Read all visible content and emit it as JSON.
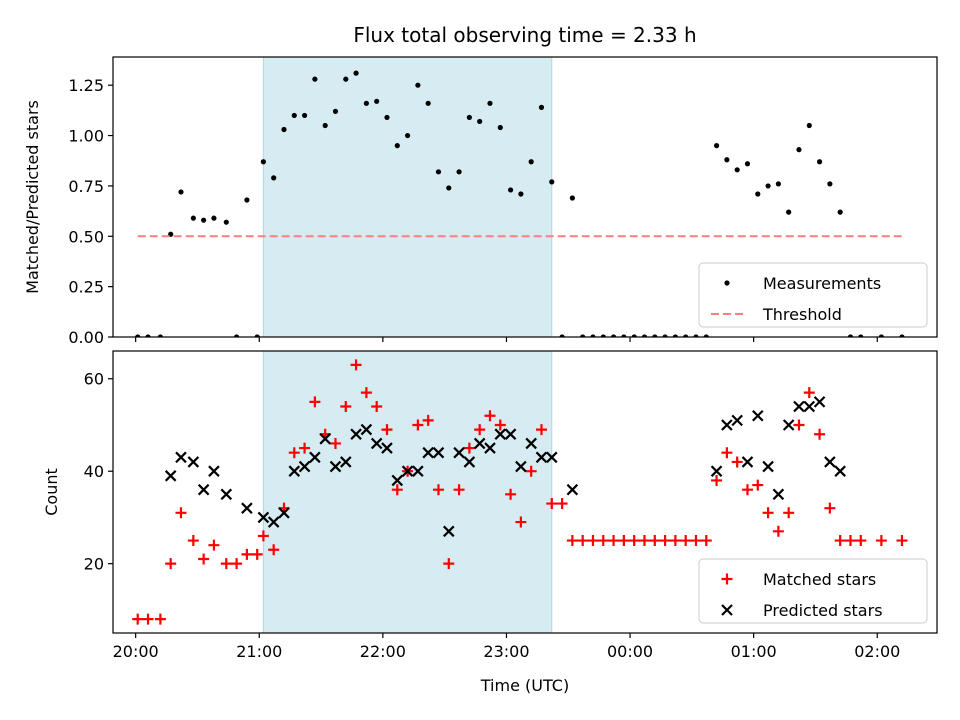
{
  "chart_data": [
    {
      "type": "scatter",
      "title": "Flux total observing time = 2.33 h",
      "xlabel": "",
      "ylabel": "Matched/Predicted stars",
      "xlim": [
        "19:49",
        "02:29"
      ],
      "ylim": [
        0,
        1.39
      ],
      "yticks": [
        "0.00",
        "0.25",
        "0.50",
        "0.75",
        "1.00",
        "1.25"
      ],
      "shaded_region": {
        "x_start": "21:02",
        "x_end": "23:22",
        "color": "#add8e6"
      },
      "legend_position": "lower-right",
      "series": [
        {
          "name": "Measurements",
          "color": "#000000",
          "marker": "dot",
          "points": [
            [
              "20:01",
              0
            ],
            [
              "20:06",
              0
            ],
            [
              "20:12",
              0
            ],
            [
              "20:17",
              0.51
            ],
            [
              "20:22",
              0.72
            ],
            [
              "20:28",
              0.59
            ],
            [
              "20:33",
              0.58
            ],
            [
              "20:38",
              0.59
            ],
            [
              "20:44",
              0.57
            ],
            [
              "20:49",
              0
            ],
            [
              "20:54",
              0.68
            ],
            [
              "20:59",
              0
            ],
            [
              "21:02",
              0.87
            ],
            [
              "21:07",
              0.79
            ],
            [
              "21:12",
              1.03
            ],
            [
              "21:17",
              1.1
            ],
            [
              "21:22",
              1.1
            ],
            [
              "21:27",
              1.28
            ],
            [
              "21:32",
              1.05
            ],
            [
              "21:37",
              1.12
            ],
            [
              "21:42",
              1.28
            ],
            [
              "21:47",
              1.31
            ],
            [
              "21:52",
              1.16
            ],
            [
              "21:57",
              1.17
            ],
            [
              "22:02",
              1.09
            ],
            [
              "22:07",
              0.95
            ],
            [
              "22:12",
              1.0
            ],
            [
              "22:17",
              1.25
            ],
            [
              "22:22",
              1.16
            ],
            [
              "22:27",
              0.82
            ],
            [
              "22:32",
              0.74
            ],
            [
              "22:37",
              0.82
            ],
            [
              "22:42",
              1.09
            ],
            [
              "22:47",
              1.07
            ],
            [
              "22:52",
              1.16
            ],
            [
              "22:57",
              1.04
            ],
            [
              "23:02",
              0.73
            ],
            [
              "23:07",
              0.71
            ],
            [
              "23:12",
              0.87
            ],
            [
              "23:17",
              1.14
            ],
            [
              "23:22",
              0.77
            ],
            [
              "23:27",
              0
            ],
            [
              "23:32",
              0.69
            ],
            [
              "23:37",
              0
            ],
            [
              "23:42",
              0
            ],
            [
              "23:47",
              0
            ],
            [
              "23:52",
              0
            ],
            [
              "23:57",
              0
            ],
            [
              "00:02",
              0
            ],
            [
              "00:07",
              0
            ],
            [
              "00:12",
              0
            ],
            [
              "00:17",
              0
            ],
            [
              "00:22",
              0
            ],
            [
              "00:27",
              0
            ],
            [
              "00:32",
              0
            ],
            [
              "00:37",
              0
            ],
            [
              "00:42",
              0.95
            ],
            [
              "00:47",
              0.88
            ],
            [
              "00:52",
              0.83
            ],
            [
              "00:57",
              0.86
            ],
            [
              "01:02",
              0.71
            ],
            [
              "01:07",
              0.75
            ],
            [
              "01:12",
              0.76
            ],
            [
              "01:17",
              0.62
            ],
            [
              "01:22",
              0.93
            ],
            [
              "01:27",
              1.05
            ],
            [
              "01:32",
              0.87
            ],
            [
              "01:37",
              0.76
            ],
            [
              "01:42",
              0.62
            ],
            [
              "01:47",
              0
            ],
            [
              "01:52",
              0
            ],
            [
              "02:02",
              0
            ],
            [
              "02:12",
              0
            ]
          ]
        },
        {
          "name": "Threshold",
          "color": "#ff7f7f",
          "style": "dashed",
          "points": [
            [
              "20:01",
              0.5
            ],
            [
              "02:12",
              0.5
            ]
          ]
        }
      ]
    },
    {
      "type": "scatter",
      "title": "",
      "xlabel": "Time (UTC)",
      "ylabel": "Count",
      "xlim": [
        "19:49",
        "02:29"
      ],
      "ylim": [
        5,
        66
      ],
      "xticks": [
        "20:00",
        "21:00",
        "22:00",
        "23:00",
        "00:00",
        "01:00",
        "02:00"
      ],
      "yticks": [
        "20",
        "40",
        "60"
      ],
      "shaded_region": {
        "x_start": "21:02",
        "x_end": "23:22",
        "color": "#add8e6"
      },
      "legend_position": "lower-right",
      "series": [
        {
          "name": "Matched stars",
          "color": "#ff0000",
          "marker": "plus",
          "points": [
            [
              "20:01",
              8
            ],
            [
              "20:06",
              8
            ],
            [
              "20:12",
              8
            ],
            [
              "20:17",
              20
            ],
            [
              "20:22",
              31
            ],
            [
              "20:28",
              25
            ],
            [
              "20:33",
              21
            ],
            [
              "20:38",
              24
            ],
            [
              "20:44",
              20
            ],
            [
              "20:49",
              20
            ],
            [
              "20:54",
              22
            ],
            [
              "20:59",
              22
            ],
            [
              "21:02",
              26
            ],
            [
              "21:07",
              23
            ],
            [
              "21:12",
              32
            ],
            [
              "21:17",
              44
            ],
            [
              "21:22",
              45
            ],
            [
              "21:27",
              55
            ],
            [
              "21:32",
              48
            ],
            [
              "21:37",
              46
            ],
            [
              "21:42",
              54
            ],
            [
              "21:47",
              63
            ],
            [
              "21:52",
              57
            ],
            [
              "21:57",
              54
            ],
            [
              "22:02",
              49
            ],
            [
              "22:07",
              36
            ],
            [
              "22:12",
              40
            ],
            [
              "22:17",
              50
            ],
            [
              "22:22",
              51
            ],
            [
              "22:27",
              36
            ],
            [
              "22:32",
              20
            ],
            [
              "22:37",
              36
            ],
            [
              "22:42",
              45
            ],
            [
              "22:47",
              49
            ],
            [
              "22:52",
              52
            ],
            [
              "22:57",
              50
            ],
            [
              "23:02",
              35
            ],
            [
              "23:07",
              29
            ],
            [
              "23:12",
              40
            ],
            [
              "23:17",
              49
            ],
            [
              "23:22",
              33
            ],
            [
              "23:27",
              33
            ],
            [
              "23:32",
              25
            ],
            [
              "23:37",
              25
            ],
            [
              "23:42",
              25
            ],
            [
              "23:47",
              25
            ],
            [
              "23:52",
              25
            ],
            [
              "23:57",
              25
            ],
            [
              "00:02",
              25
            ],
            [
              "00:07",
              25
            ],
            [
              "00:12",
              25
            ],
            [
              "00:17",
              25
            ],
            [
              "00:22",
              25
            ],
            [
              "00:27",
              25
            ],
            [
              "00:32",
              25
            ],
            [
              "00:37",
              25
            ],
            [
              "00:42",
              38
            ],
            [
              "00:47",
              44
            ],
            [
              "00:52",
              42
            ],
            [
              "00:57",
              36
            ],
            [
              "01:02",
              37
            ],
            [
              "01:07",
              31
            ],
            [
              "01:12",
              27
            ],
            [
              "01:17",
              31
            ],
            [
              "01:22",
              50
            ],
            [
              "01:27",
              57
            ],
            [
              "01:32",
              48
            ],
            [
              "01:37",
              32
            ],
            [
              "01:42",
              25
            ],
            [
              "01:47",
              25
            ],
            [
              "01:52",
              25
            ],
            [
              "02:02",
              25
            ],
            [
              "02:12",
              25
            ]
          ]
        },
        {
          "name": "Predicted stars",
          "color": "#000000",
          "marker": "x",
          "points": [
            [
              "20:17",
              39
            ],
            [
              "20:22",
              43
            ],
            [
              "20:28",
              42
            ],
            [
              "20:33",
              36
            ],
            [
              "20:38",
              40
            ],
            [
              "20:44",
              35
            ],
            [
              "20:54",
              32
            ],
            [
              "21:02",
              30
            ],
            [
              "21:07",
              29
            ],
            [
              "21:12",
              31
            ],
            [
              "21:17",
              40
            ],
            [
              "21:22",
              41
            ],
            [
              "21:27",
              43
            ],
            [
              "21:32",
              47
            ],
            [
              "21:37",
              41
            ],
            [
              "21:42",
              42
            ],
            [
              "21:47",
              48
            ],
            [
              "21:52",
              49
            ],
            [
              "21:57",
              46
            ],
            [
              "22:02",
              45
            ],
            [
              "22:07",
              38
            ],
            [
              "22:12",
              40
            ],
            [
              "22:17",
              40
            ],
            [
              "22:22",
              44
            ],
            [
              "22:27",
              44
            ],
            [
              "22:32",
              27
            ],
            [
              "22:37",
              44
            ],
            [
              "22:42",
              42
            ],
            [
              "22:47",
              46
            ],
            [
              "22:52",
              45
            ],
            [
              "22:57",
              48
            ],
            [
              "23:02",
              48
            ],
            [
              "23:07",
              41
            ],
            [
              "23:12",
              46
            ],
            [
              "23:17",
              43
            ],
            [
              "23:22",
              43
            ],
            [
              "23:32",
              36
            ],
            [
              "00:42",
              40
            ],
            [
              "00:47",
              50
            ],
            [
              "00:52",
              51
            ],
            [
              "00:57",
              42
            ],
            [
              "01:02",
              52
            ],
            [
              "01:07",
              41
            ],
            [
              "01:12",
              35
            ],
            [
              "01:17",
              50
            ],
            [
              "01:22",
              54
            ],
            [
              "01:27",
              54
            ],
            [
              "01:32",
              55
            ],
            [
              "01:37",
              42
            ],
            [
              "01:42",
              40
            ]
          ]
        }
      ]
    }
  ]
}
